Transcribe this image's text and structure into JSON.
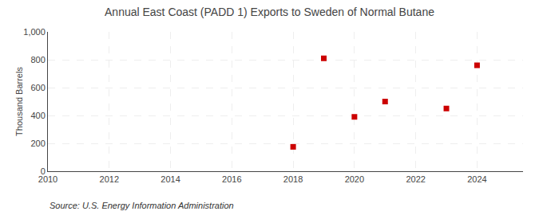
{
  "chart_data": {
    "type": "scatter",
    "title": "Annual East Coast (PADD 1) Exports to Sweden of Normal Butane",
    "ylabel": "Thousand Barrels",
    "annotations": [
      "Source: U.S. Energy Information Administration"
    ],
    "x": [
      2018,
      2019,
      2020,
      2021,
      2023,
      2024
    ],
    "values": [
      175,
      810,
      390,
      500,
      450,
      760
    ],
    "color": "#cc0000",
    "marker": "square",
    "xlim": [
      2010,
      2025.5
    ],
    "ylim": [
      0,
      1000
    ],
    "xticks": [
      2010,
      2012,
      2014,
      2016,
      2018,
      2020,
      2022,
      2024
    ],
    "yticks": [
      0,
      200,
      400,
      600,
      800,
      {
        "value": 1000,
        "label": "1,000"
      }
    ],
    "grid": true
  }
}
